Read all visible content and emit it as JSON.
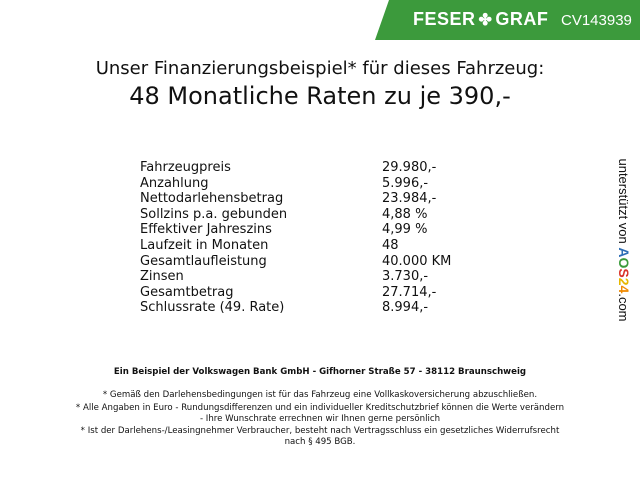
{
  "header": {
    "brand_left": "FESER",
    "brand_right": "GRAF",
    "brand_symbol": "clover-icon",
    "vehicle_code": "CV143939",
    "brand_color": "#3c9a3c"
  },
  "title": {
    "line1": "Unser Finanzierungsbeispiel* für dieses Fahrzeug:",
    "line2": "48 Monatliche Raten zu je 390,-"
  },
  "rows": [
    {
      "label": "Fahrzeugpreis",
      "value": "29.980,-"
    },
    {
      "label": "Anzahlung",
      "value": "5.996,-"
    },
    {
      "label": "Nettodarlehensbetrag",
      "value": "23.984,-"
    },
    {
      "label": "Sollzins p.a. gebunden",
      "value": "4,88 %"
    },
    {
      "label": "Effektiver Jahreszins",
      "value": "4,99 %"
    },
    {
      "label": "Laufzeit in Monaten",
      "value": "48"
    },
    {
      "label": "Gesamtlaufleistung",
      "value": "40.000 KM"
    },
    {
      "label": "Zinsen",
      "value": "3.730,-"
    },
    {
      "label": "Gesamtbetrag",
      "value": "27.714,-"
    },
    {
      "label": "Schlussrate (49. Rate)",
      "value": "8.994,-"
    }
  ],
  "side": {
    "text": "unterstützt von",
    "logo": "AOS24",
    "suffix": ".com"
  },
  "footer": {
    "bank": "Ein Beispiel der Volkswagen Bank GmbH - Gifhorner Straße 57 - 38112 Braunschweig",
    "note1": "* Gemäß den Darlehensbedingungen ist für das Fahrzeug eine Vollkaskoversicherung abzuschließen.",
    "note2a": "* Alle Angaben in Euro - Rundungsdifferenzen und ein individueller Kreditschutzbrief können die Werte verändern",
    "note2b": "- Ihre Wunschrate errechnen wir Ihnen gerne persönlich",
    "note3a": "* Ist der Darlehens-/Leasingnehmer Verbraucher, besteht nach Vertragsschluss ein gesetzliches Widerrufsrecht",
    "note3b": "nach § 495 BGB."
  }
}
